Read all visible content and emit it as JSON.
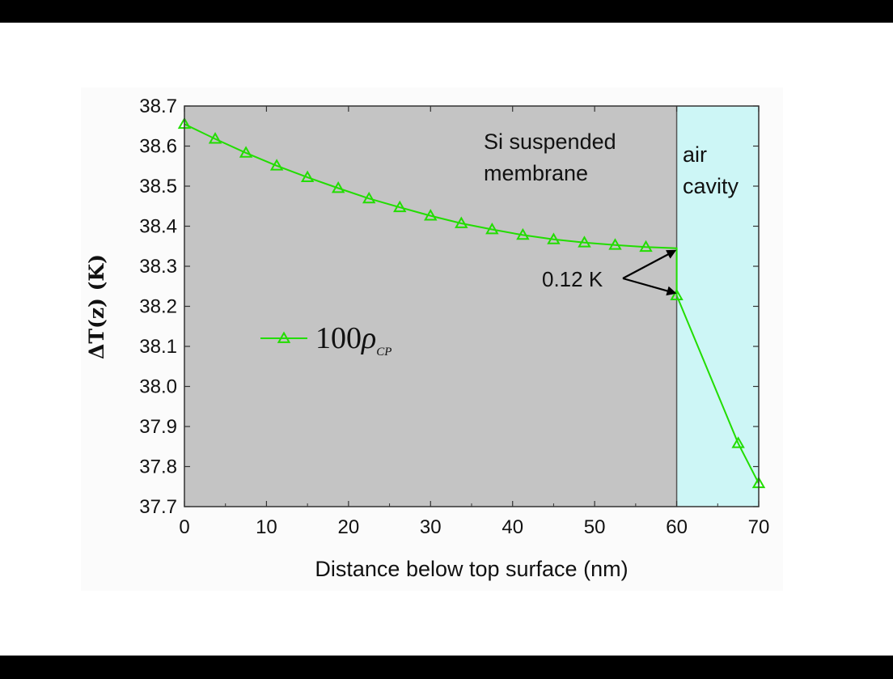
{
  "chart_data": {
    "type": "line",
    "xlabel": "Distance below top surface (nm)",
    "ylabel": "ΔT(z) (K)",
    "xlim": [
      0,
      70
    ],
    "ylim": [
      37.7,
      38.7
    ],
    "xticks": [
      "0",
      "10",
      "20",
      "30",
      "40",
      "50",
      "60",
      "70"
    ],
    "yticks": [
      "37.7",
      "37.8",
      "37.9",
      "38.0",
      "38.1",
      "38.2",
      "38.3",
      "38.4",
      "38.5",
      "38.6",
      "38.7"
    ],
    "grid": false,
    "legend_position": "middle-left",
    "series": [
      {
        "name": "100ρ_CP",
        "name_main": "100",
        "name_symbol": "ρ",
        "name_subscript": "CP",
        "color": "#22dd00",
        "marker": "triangle-open",
        "x": [
          0,
          3.75,
          7.5,
          11.25,
          15,
          18.75,
          22.5,
          26.25,
          30,
          33.75,
          37.5,
          41.25,
          45,
          48.75,
          52.5,
          56.25,
          60,
          60,
          67.5,
          70
        ],
        "y": [
          38.655,
          38.618,
          38.583,
          38.551,
          38.522,
          38.495,
          38.469,
          38.447,
          38.426,
          38.407,
          38.392,
          38.378,
          38.367,
          38.359,
          38.353,
          38.348,
          38.345,
          38.227,
          37.858,
          37.758
        ],
        "marked": [
          true,
          true,
          true,
          true,
          true,
          true,
          true,
          true,
          true,
          true,
          true,
          true,
          true,
          true,
          true,
          true,
          false,
          true,
          true,
          true
        ]
      }
    ],
    "regions": [
      {
        "label_lines": [
          "Si suspended",
          "membrane"
        ],
        "x_range": [
          0,
          60
        ],
        "color": "#c4c4c4"
      },
      {
        "label_lines": [
          "air",
          "cavity"
        ],
        "x_range": [
          60,
          70
        ],
        "color": "#cdf6f6"
      }
    ],
    "annotation": {
      "text": "0.12 K",
      "targets": [
        [
          60,
          38.345
        ],
        [
          60,
          38.227
        ]
      ]
    }
  }
}
